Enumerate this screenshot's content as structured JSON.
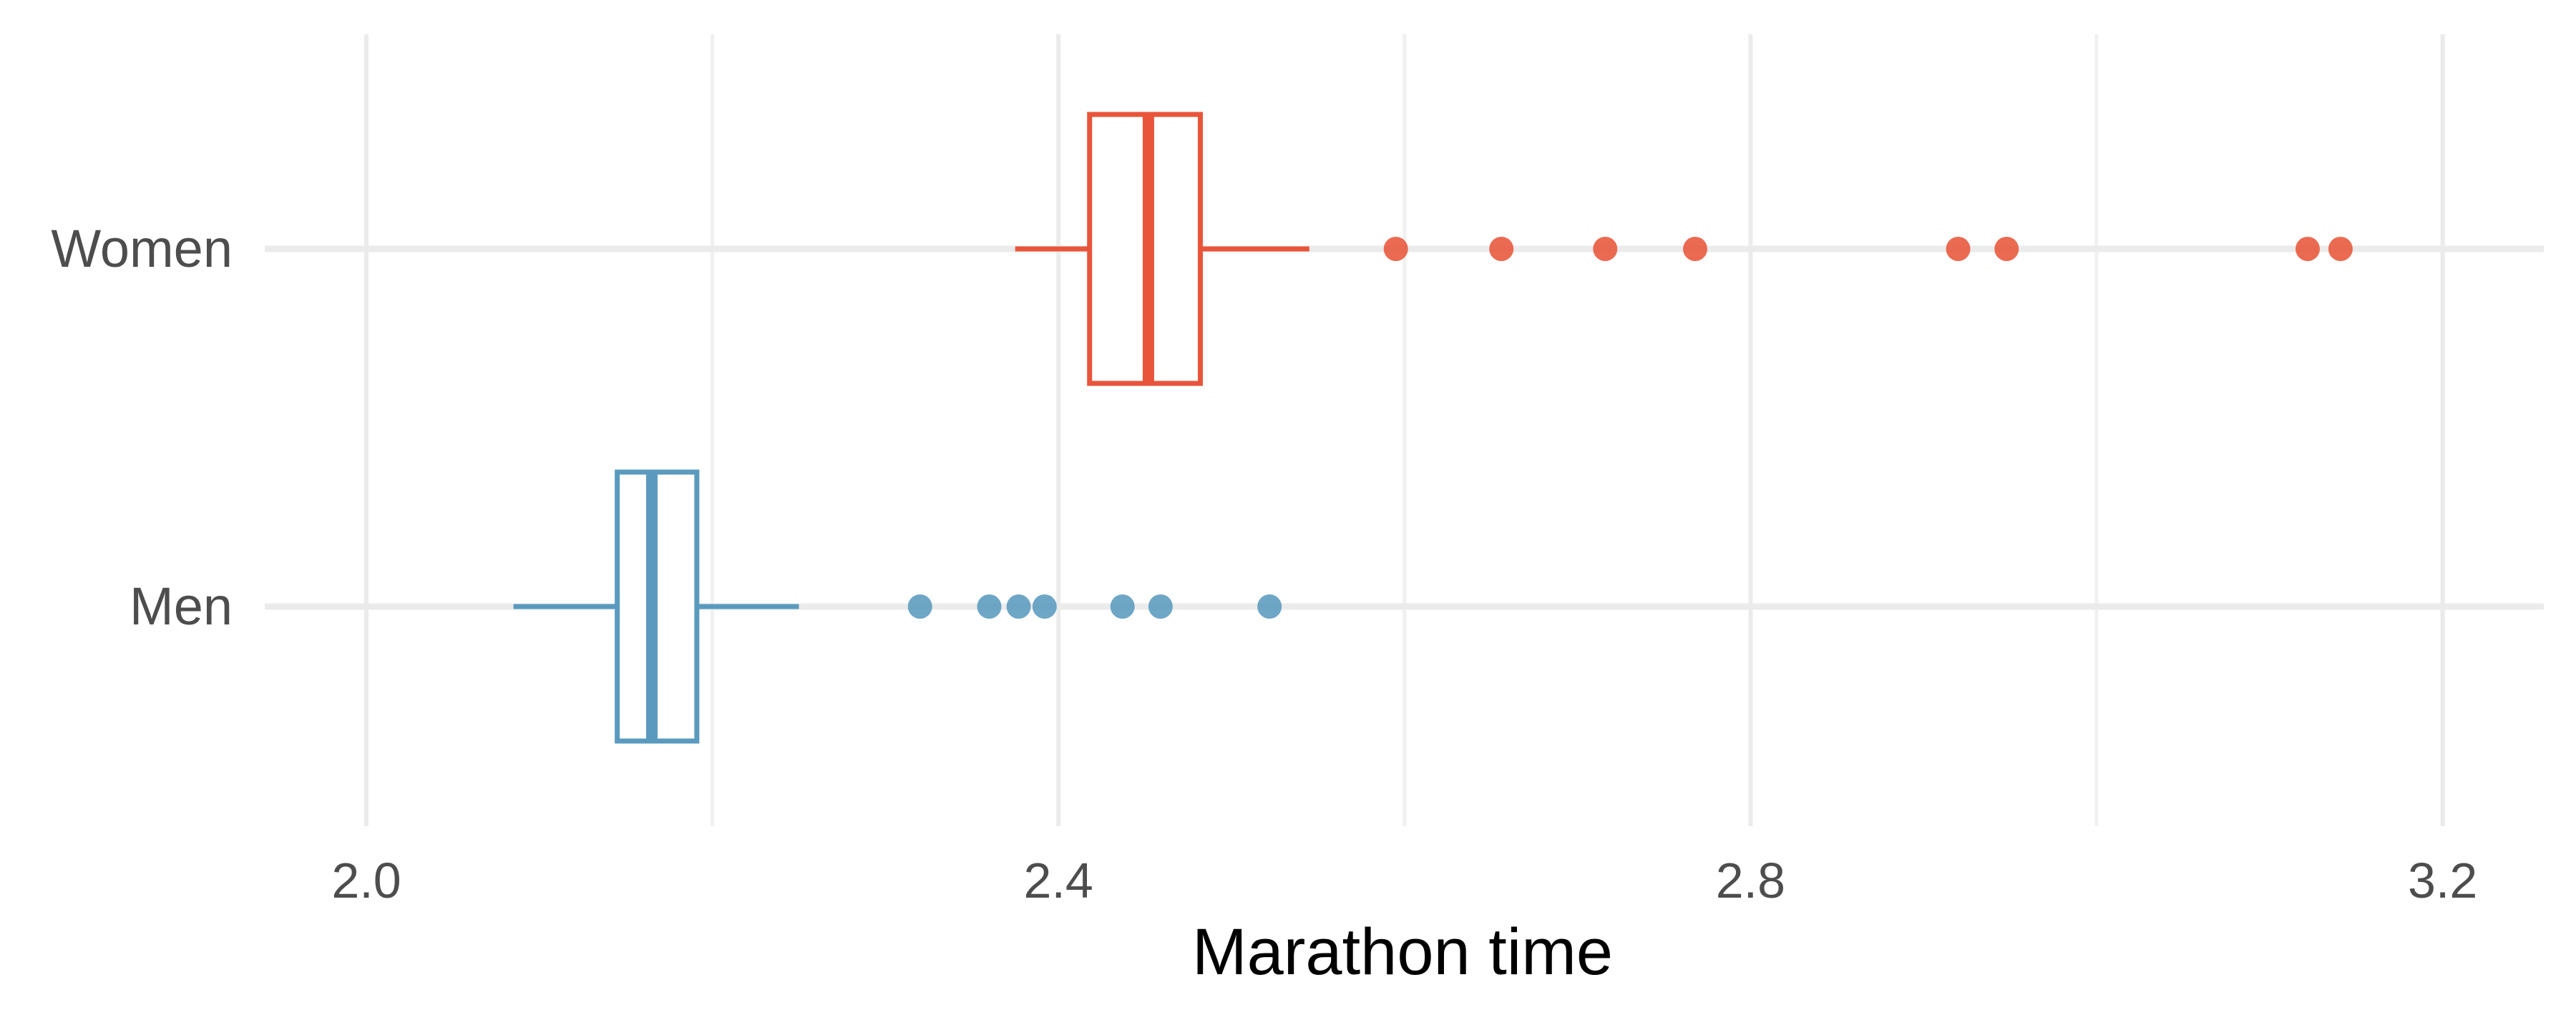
{
  "chart_data": {
    "type": "boxplot",
    "orientation": "horizontal",
    "title": "",
    "xlabel": "Marathon time",
    "ylabel": "",
    "xlim": [
      1.95,
      3.25
    ],
    "x_ticks": [
      2.0,
      2.4,
      2.8,
      3.2
    ],
    "x_tick_labels": [
      "2.0",
      "2.4",
      "2.8",
      "3.2"
    ],
    "x_minor_gridlines": [
      2.2,
      2.6,
      3.0
    ],
    "grid": true,
    "legend": "none",
    "categories": [
      "Women",
      "Men"
    ],
    "series": [
      {
        "name": "Women",
        "color": "#E8553A",
        "stats": {
          "whisker_low": 2.375,
          "q1": 2.418,
          "median": 2.452,
          "q3": 2.482,
          "whisker_high": 2.545
        },
        "outliers": [
          2.595,
          2.656,
          2.716,
          2.768,
          2.92,
          2.948,
          3.122,
          3.141
        ]
      },
      {
        "name": "Men",
        "color": "#5A9ABE",
        "stats": {
          "whisker_low": 2.085,
          "q1": 2.145,
          "median": 2.165,
          "q3": 2.191,
          "whisker_high": 2.25
        },
        "outliers": [
          2.32,
          2.36,
          2.377,
          2.392,
          2.437,
          2.459,
          2.522
        ]
      }
    ]
  }
}
